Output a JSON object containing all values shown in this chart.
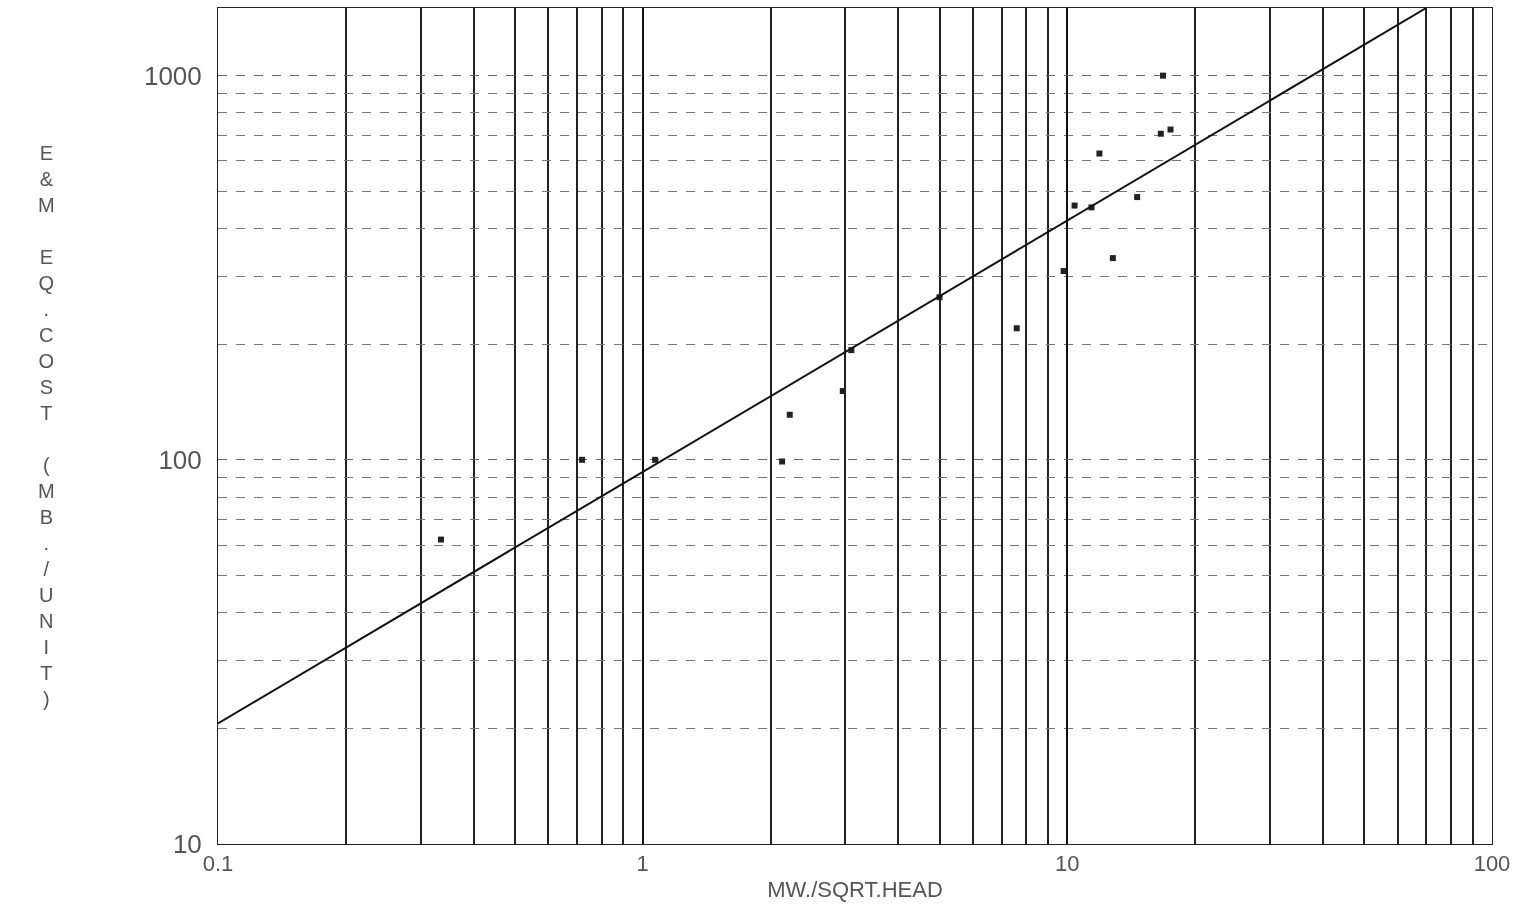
{
  "chart_data": {
    "type": "scatter",
    "xlabel": "MW./SQRT.HEAD",
    "ylabel": "E&M EQ.COST (MB./UNIT)",
    "log": "xy",
    "grid": true,
    "xlim": [
      0.1,
      100
    ],
    "ylim": [
      10,
      1500
    ],
    "xticks": [
      0.1,
      1,
      10,
      100
    ],
    "yticks": [
      10,
      100,
      1000
    ],
    "series": [
      {
        "marker": "square",
        "color": "#222222",
        "x": [
          0.335,
          0.72,
          1.07,
          2.13,
          2.22,
          2.96,
          3.1,
          5.0,
          7.6,
          9.8,
          10.4,
          11.4,
          11.9,
          12.8,
          14.6,
          16.6,
          17.5,
          16.8
        ],
        "values": [
          62,
          100,
          100,
          99,
          131,
          151,
          193,
          265,
          220,
          310,
          459,
          454,
          627,
          335,
          483,
          706,
          724,
          1000
        ]
      },
      {
        "type": "line",
        "marker": "none",
        "color": "#111111",
        "x": [
          0.1,
          70
        ],
        "values": [
          20.6,
          1500
        ]
      }
    ]
  }
}
